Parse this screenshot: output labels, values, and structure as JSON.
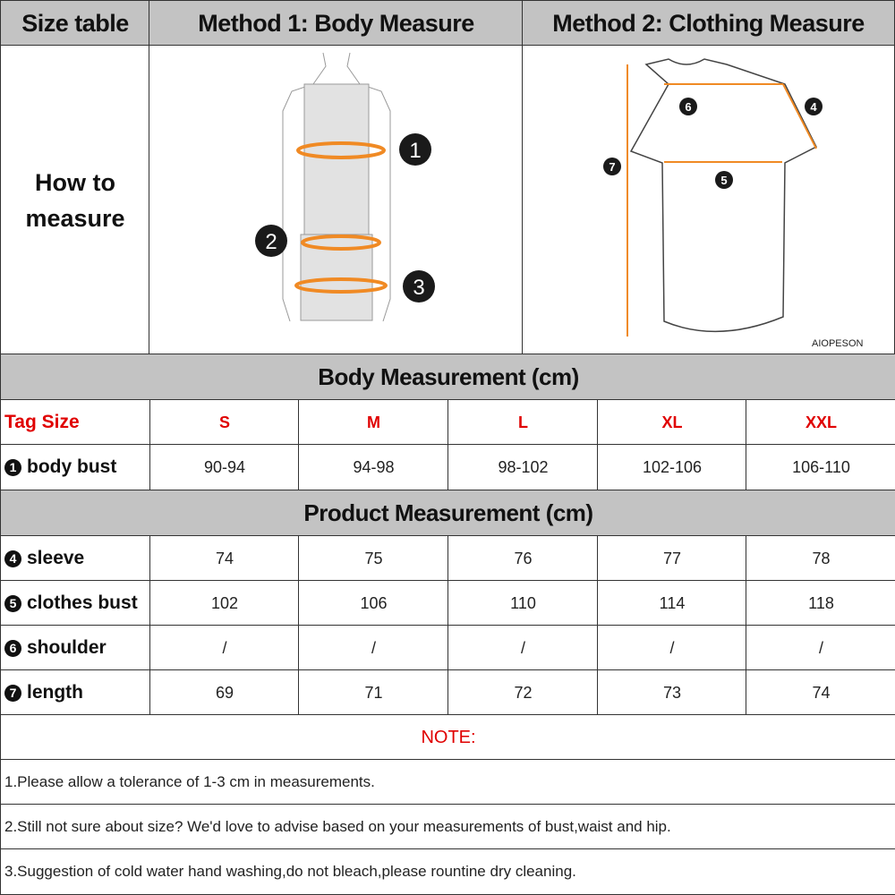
{
  "header": {
    "size_table": "Size table",
    "method1": "Method 1: Body  Measure",
    "method2": "Method 2: Clothing Measure"
  },
  "how_to": {
    "line1": "How to",
    "line2": "measure",
    "brand": "AIOPESON",
    "markers_body": [
      "1",
      "2",
      "3"
    ],
    "markers_cloth": [
      "4",
      "5",
      "6",
      "7"
    ]
  },
  "body_section": {
    "title": "Body Measurement (cm)",
    "tag_label": "Tag Size",
    "sizes": [
      "S",
      "M",
      "L",
      "XL",
      "XXL"
    ],
    "rows": [
      {
        "num": "1",
        "label": "body bust",
        "values": [
          "90-94",
          "94-98",
          "98-102",
          "102-106",
          "106-110"
        ]
      }
    ]
  },
  "product_section": {
    "title": "Product Measurement (cm)",
    "rows": [
      {
        "num": "4",
        "label": "sleeve",
        "values": [
          "74",
          "75",
          "76",
          "77",
          "78"
        ]
      },
      {
        "num": "5",
        "label": "clothes bust",
        "values": [
          "102",
          "106",
          "110",
          "114",
          "118"
        ]
      },
      {
        "num": "6",
        "label": "shoulder",
        "values": [
          "/",
          "/",
          "/",
          "/",
          "/"
        ]
      },
      {
        "num": "7",
        "label": "length",
        "values": [
          "69",
          "71",
          "72",
          "73",
          "74"
        ]
      }
    ]
  },
  "notes": {
    "title": "NOTE:",
    "items": [
      "1.Please allow a tolerance of 1-3 cm in measurements.",
      "2.Still not sure about size? We'd love to advise based on your measurements of bust,waist and hip.",
      "3.Suggestion of cold water hand washing,do not bleach,please rountine dry cleaning."
    ]
  },
  "colors": {
    "header_gray": "#c3c3c3",
    "accent_red": "#e00000",
    "measure_orange": "#f08a24"
  }
}
